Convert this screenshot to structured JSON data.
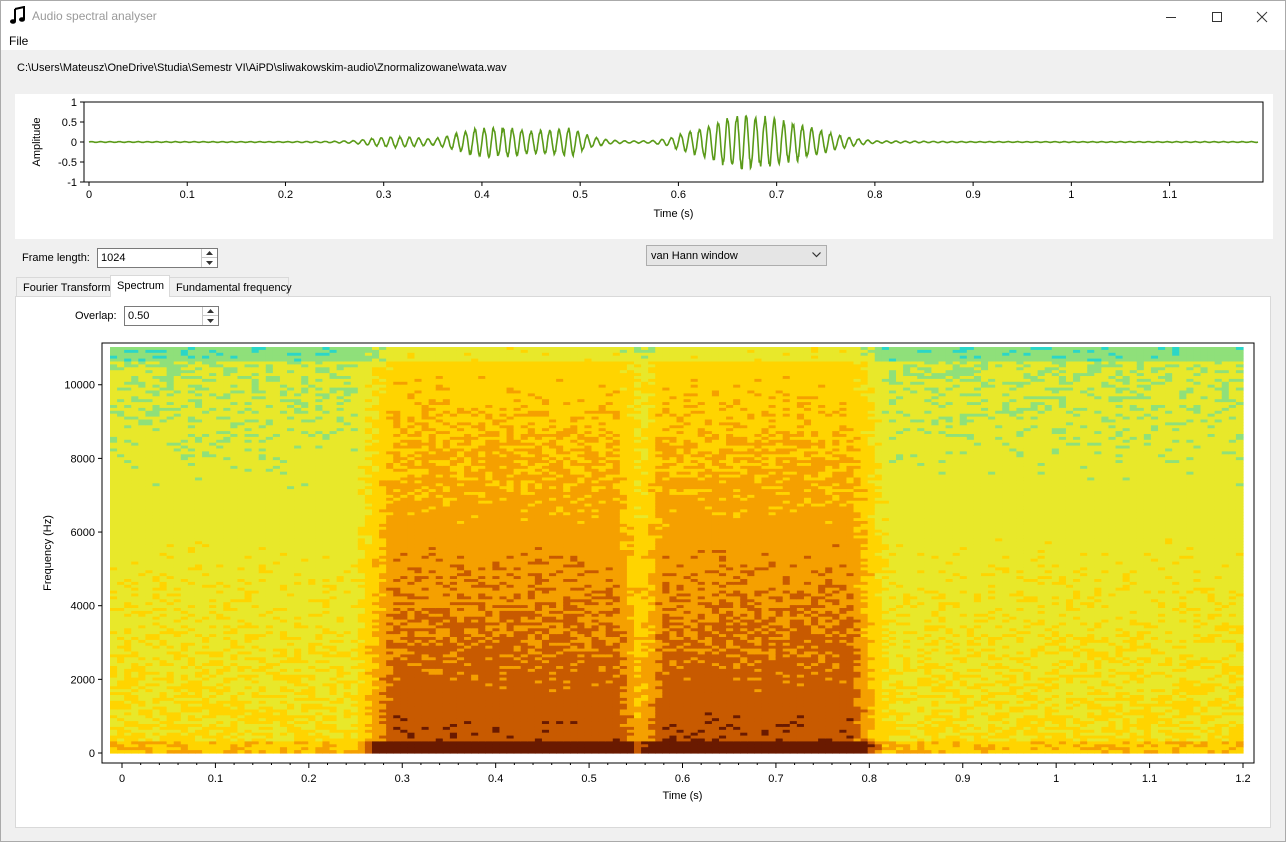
{
  "window": {
    "title": "Audio spectral analyser",
    "icon": "music-note-icon",
    "minimize_icon": "minimize-icon",
    "maximize_icon": "maximize-icon",
    "close_icon": "close-icon"
  },
  "menu": {
    "file": "File"
  },
  "file_path": "C:\\Users\\Mateusz\\OneDrive\\Studia\\Semestr VI\\AiPD\\sliwakowskim-audio\\Znormalizowane\\wata.wav",
  "controls": {
    "frame_length_label": "Frame length:",
    "frame_length_value": "1024",
    "window_type": "van Hann window",
    "overlap_label": "Overlap:",
    "overlap_value": "0.50"
  },
  "tabs": [
    {
      "label": "Fourier Transform",
      "active": false
    },
    {
      "label": "Spectrum",
      "active": true
    },
    {
      "label": "Fundamental frequency",
      "active": false
    }
  ],
  "chart_data": [
    {
      "type": "line",
      "xlabel": "Time (s)",
      "ylabel": "Amplitude",
      "xlim": [
        0,
        1.19
      ],
      "ylim": [
        -1,
        1
      ],
      "x_ticks": [
        "0",
        "0.1",
        "0.2",
        "0.3",
        "0.4",
        "0.5",
        "0.6",
        "0.7",
        "0.8",
        "0.9",
        "1",
        "1.1"
      ],
      "y_ticks": [
        "1",
        "0.5",
        "0",
        "-0.5",
        "-1"
      ],
      "line_color": "#5a9a18",
      "series": [
        {
          "x": [
            0,
            0.05,
            0.1,
            0.15,
            0.2,
            0.25,
            0.27,
            0.29,
            0.31,
            0.33,
            0.35,
            0.37,
            0.39,
            0.41,
            0.43,
            0.45,
            0.47,
            0.49,
            0.51,
            0.53,
            0.55,
            0.57,
            0.59,
            0.6,
            0.62,
            0.64,
            0.66,
            0.68,
            0.7,
            0.72,
            0.74,
            0.76,
            0.78,
            0.8,
            0.85,
            0.9,
            0.95,
            1.0,
            1.05,
            1.1,
            1.15,
            1.19
          ],
          "envelope": [
            0.01,
            0.01,
            0.01,
            0.01,
            0.01,
            0.02,
            0.04,
            0.1,
            0.15,
            0.12,
            0.08,
            0.2,
            0.35,
            0.4,
            0.38,
            0.3,
            0.32,
            0.38,
            0.15,
            0.05,
            0.03,
            0.03,
            0.1,
            0.2,
            0.35,
            0.55,
            0.75,
            0.7,
            0.6,
            0.5,
            0.35,
            0.2,
            0.1,
            0.03,
            0.02,
            0.01,
            0.01,
            0.01,
            0.01,
            0.01,
            0.01,
            0.01
          ]
        }
      ]
    },
    {
      "type": "heatmap",
      "xlabel": "Time (s)",
      "ylabel": "Frequency (Hz)",
      "xlim": [
        0,
        1.2
      ],
      "ylim": [
        0,
        11025
      ],
      "x_ticks": [
        "0",
        "0.1",
        "0.2",
        "0.3",
        "0.4",
        "0.5",
        "0.6",
        "0.7",
        "0.8",
        "0.9",
        "1",
        "1.1",
        "1.2"
      ],
      "y_ticks": [
        "0",
        "2000",
        "4000",
        "6000",
        "8000",
        "10000"
      ],
      "colormap": [
        "#2bd6c8",
        "#8fe07a",
        "#e8e82a",
        "#ffd400",
        "#f5a000",
        "#c85a00",
        "#6a1a00"
      ],
      "energy_bands": [
        {
          "t_start": 0.27,
          "t_end": 0.55,
          "level": "high"
        },
        {
          "t_start": 0.56,
          "t_end": 0.8,
          "level": "high"
        }
      ]
    }
  ]
}
